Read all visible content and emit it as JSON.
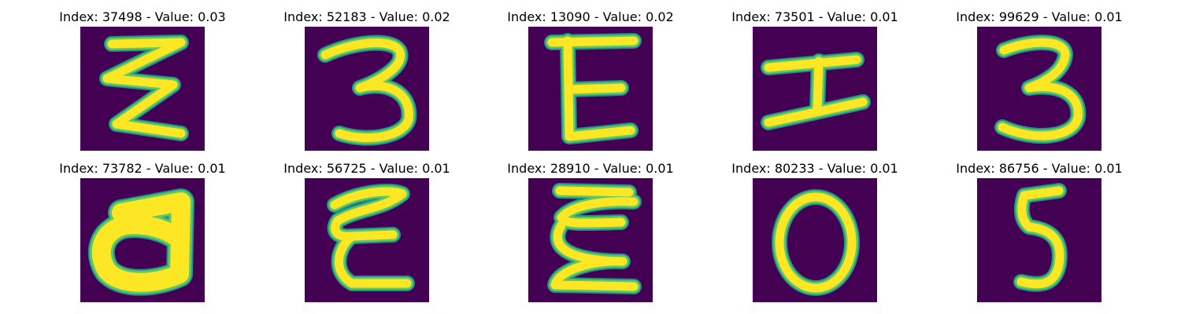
{
  "figure": {
    "colormap": "viridis",
    "background_color": "#440154",
    "foreground_color": "#fde725",
    "panels": [
      {
        "title": "Index: 37498 - Value: 0.03",
        "index": 37498,
        "value": 0.03
      },
      {
        "title": "Index: 52183 - Value: 0.02",
        "index": 52183,
        "value": 0.02
      },
      {
        "title": "Index: 13090 - Value: 0.02",
        "index": 13090,
        "value": 0.02
      },
      {
        "title": "Index: 73501 - Value: 0.01",
        "index": 73501,
        "value": 0.01
      },
      {
        "title": "Index: 99629 - Value: 0.01",
        "index": 99629,
        "value": 0.01
      },
      {
        "title": "Index: 73782 - Value: 0.01",
        "index": 73782,
        "value": 0.01
      },
      {
        "title": "Index: 56725 - Value: 0.01",
        "index": 56725,
        "value": 0.01
      },
      {
        "title": "Index: 28910 - Value: 0.01",
        "index": 28910,
        "value": 0.01
      },
      {
        "title": "Index: 80233 - Value: 0.01",
        "index": 80233,
        "value": 0.01
      },
      {
        "title": "Index: 86756 - Value: 0.01",
        "index": 86756,
        "value": 0.01
      }
    ]
  }
}
